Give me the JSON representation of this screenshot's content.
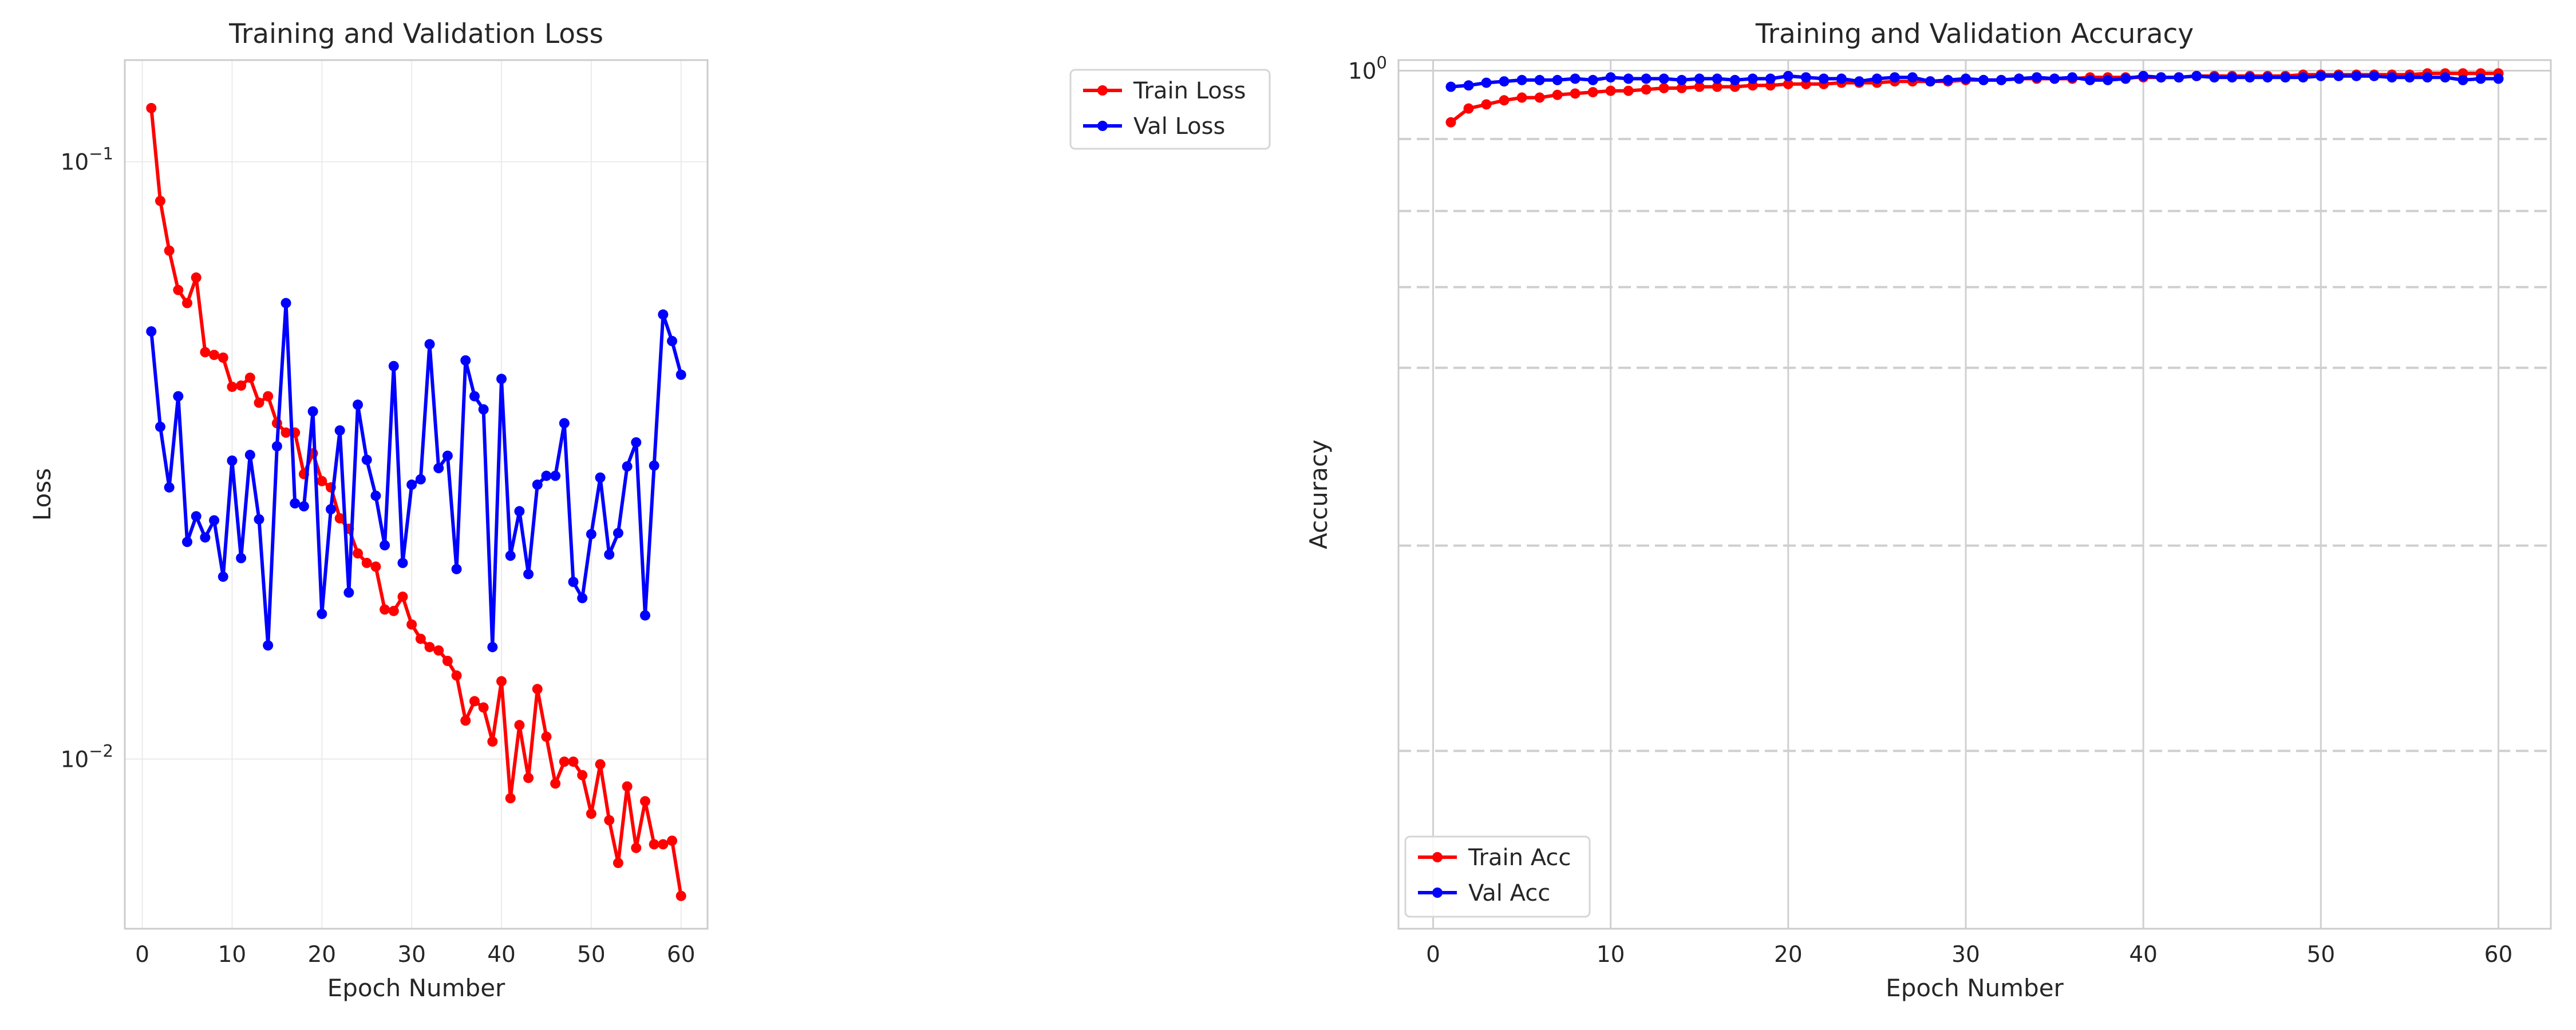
{
  "chart_data": [
    {
      "type": "line",
      "title": "Training and Validation Loss",
      "xlabel": "Epoch Number",
      "ylabel": "Loss",
      "yscale": "log",
      "xlim": [
        -1.95,
        62.95
      ],
      "ylim": [
        0.0052,
        0.148
      ],
      "xticks": [
        0,
        10,
        20,
        30,
        40,
        50,
        60
      ],
      "xtick_labels": [
        "0",
        "10",
        "20",
        "30",
        "40",
        "50",
        "60"
      ],
      "yticks": [
        0.01,
        0.1
      ],
      "ytick_labels": [
        {
          "base": "10",
          "exp": "−2"
        },
        {
          "base": "10",
          "exp": "−1"
        }
      ],
      "grid": true,
      "legend": "top-right",
      "x": [
        1,
        2,
        3,
        4,
        5,
        6,
        7,
        8,
        9,
        10,
        11,
        12,
        13,
        14,
        15,
        16,
        17,
        18,
        19,
        20,
        21,
        22,
        23,
        24,
        25,
        26,
        27,
        28,
        29,
        30,
        31,
        32,
        33,
        34,
        35,
        36,
        37,
        38,
        39,
        40,
        41,
        42,
        43,
        44,
        45,
        46,
        47,
        48,
        49,
        50,
        51,
        52,
        53,
        54,
        55,
        56,
        57,
        58,
        59,
        60
      ],
      "series": [
        {
          "name": "Train Loss",
          "color": "#ff0000",
          "values": [
            0.123,
            0.086,
            0.071,
            0.061,
            0.058,
            0.064,
            0.048,
            0.0475,
            0.047,
            0.042,
            0.0422,
            0.0435,
            0.0395,
            0.0405,
            0.0365,
            0.0352,
            0.0352,
            0.03,
            0.0325,
            0.0292,
            0.0285,
            0.0253,
            0.0243,
            0.0221,
            0.0213,
            0.021,
            0.0178,
            0.0177,
            0.0187,
            0.0168,
            0.0159,
            0.0154,
            0.0152,
            0.0146,
            0.0138,
            0.0116,
            0.0125,
            0.0122,
            0.0107,
            0.0135,
            0.0086,
            0.0114,
            0.0093,
            0.0131,
            0.0109,
            0.0091,
            0.0099,
            0.0099,
            0.0094,
            0.0081,
            0.0098,
            0.0079,
            0.0067,
            0.009,
            0.0071,
            0.0085,
            0.0072,
            0.0072,
            0.0073,
            0.0059
          ]
        },
        {
          "name": "Val Loss",
          "color": "#0000ff",
          "values": [
            0.052,
            0.036,
            0.0285,
            0.0405,
            0.0231,
            0.0255,
            0.0235,
            0.0251,
            0.0202,
            0.0316,
            0.0217,
            0.0323,
            0.0252,
            0.0155,
            0.0334,
            0.058,
            0.0268,
            0.0265,
            0.0382,
            0.0175,
            0.0262,
            0.0355,
            0.019,
            0.0392,
            0.0317,
            0.0276,
            0.0228,
            0.0455,
            0.0213,
            0.0288,
            0.0294,
            0.0495,
            0.0307,
            0.0322,
            0.0208,
            0.0465,
            0.0405,
            0.0385,
            0.0154,
            0.0433,
            0.0219,
            0.026,
            0.0204,
            0.0288,
            0.0298,
            0.0298,
            0.0365,
            0.0198,
            0.0186,
            0.0238,
            0.0296,
            0.022,
            0.0239,
            0.0309,
            0.0339,
            0.0174,
            0.031,
            0.0555,
            0.0501,
            0.044
          ]
        }
      ]
    },
    {
      "type": "line",
      "title": "Training and Validation Accuracy",
      "xlabel": "Epoch Number",
      "ylabel": "Accuracy",
      "yscale": "log",
      "xlim": [
        -1.95,
        62.95
      ],
      "ylim": [
        0.525,
        1.008
      ],
      "xticks": [
        0,
        10,
        20,
        30,
        40,
        50,
        60
      ],
      "xtick_labels": [
        "0",
        "10",
        "20",
        "30",
        "40",
        "50",
        "60"
      ],
      "yticks": [
        1.0
      ],
      "ytick_labels": [
        {
          "base": "10",
          "exp": "0"
        }
      ],
      "minor_gridlines": [
        0.6,
        0.7,
        0.8,
        0.85,
        0.9,
        0.95
      ],
      "grid": true,
      "legend": "bottom-left",
      "x": [
        1,
        2,
        3,
        4,
        5,
        6,
        7,
        8,
        9,
        10,
        11,
        12,
        13,
        14,
        15,
        16,
        17,
        18,
        19,
        20,
        21,
        22,
        23,
        24,
        25,
        26,
        27,
        28,
        29,
        30,
        31,
        32,
        33,
        34,
        35,
        36,
        37,
        38,
        39,
        40,
        41,
        42,
        43,
        44,
        45,
        46,
        47,
        48,
        49,
        50,
        51,
        52,
        53,
        54,
        55,
        56,
        57,
        58,
        59,
        60
      ],
      "series": [
        {
          "name": "Train Acc",
          "color": "#ff0000",
          "values": [
            0.962,
            0.972,
            0.975,
            0.978,
            0.98,
            0.98,
            0.982,
            0.983,
            0.984,
            0.985,
            0.985,
            0.986,
            0.987,
            0.987,
            0.988,
            0.988,
            0.988,
            0.989,
            0.989,
            0.99,
            0.99,
            0.99,
            0.991,
            0.991,
            0.991,
            0.992,
            0.992,
            0.992,
            0.992,
            0.993,
            0.993,
            0.993,
            0.994,
            0.994,
            0.994,
            0.994,
            0.995,
            0.995,
            0.995,
            0.995,
            0.995,
            0.995,
            0.996,
            0.996,
            0.996,
            0.996,
            0.996,
            0.996,
            0.997,
            0.997,
            0.997,
            0.997,
            0.997,
            0.997,
            0.997,
            0.998,
            0.998,
            0.998,
            0.998,
            0.998
          ]
        },
        {
          "name": "Val Acc",
          "color": "#0000ff",
          "values": [
            0.988,
            0.989,
            0.991,
            0.992,
            0.993,
            0.993,
            0.993,
            0.994,
            0.993,
            0.995,
            0.994,
            0.994,
            0.994,
            0.993,
            0.994,
            0.994,
            0.993,
            0.994,
            0.994,
            0.996,
            0.995,
            0.994,
            0.994,
            0.992,
            0.994,
            0.995,
            0.995,
            0.992,
            0.993,
            0.994,
            0.993,
            0.993,
            0.994,
            0.995,
            0.994,
            0.995,
            0.993,
            0.993,
            0.994,
            0.996,
            0.995,
            0.995,
            0.996,
            0.995,
            0.995,
            0.995,
            0.995,
            0.995,
            0.995,
            0.996,
            0.996,
            0.996,
            0.996,
            0.995,
            0.995,
            0.995,
            0.995,
            0.993,
            0.994,
            0.994
          ]
        }
      ]
    }
  ]
}
